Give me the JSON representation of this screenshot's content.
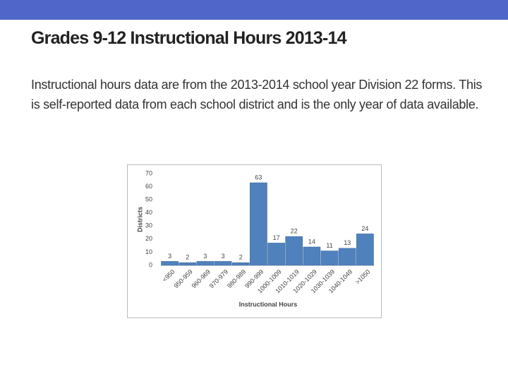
{
  "title": "Grades 9-12 Instructional Hours 2013-14",
  "body": "Instructional hours data are from the 2013-2014 school year Division 22 forms.  This is self-reported data from each school district and is the only year of data available.",
  "chart_data": {
    "type": "bar",
    "categories": [
      "<950",
      "950-959",
      "960-969",
      "970-979",
      "980-989",
      "990-999",
      "1000-1009",
      "1010-1019",
      "1020-1029",
      "1030-1039",
      "1040-1049",
      ">1050"
    ],
    "values": [
      3,
      2,
      3,
      3,
      2,
      63,
      17,
      22,
      14,
      11,
      13,
      24
    ],
    "color": "#4f81bd",
    "ylim": [
      0,
      70
    ],
    "yticks": [
      0,
      10,
      20,
      30,
      40,
      50,
      60,
      70
    ],
    "x_label": "Instructional Hours",
    "y_label": "Districts",
    "grid": false
  }
}
